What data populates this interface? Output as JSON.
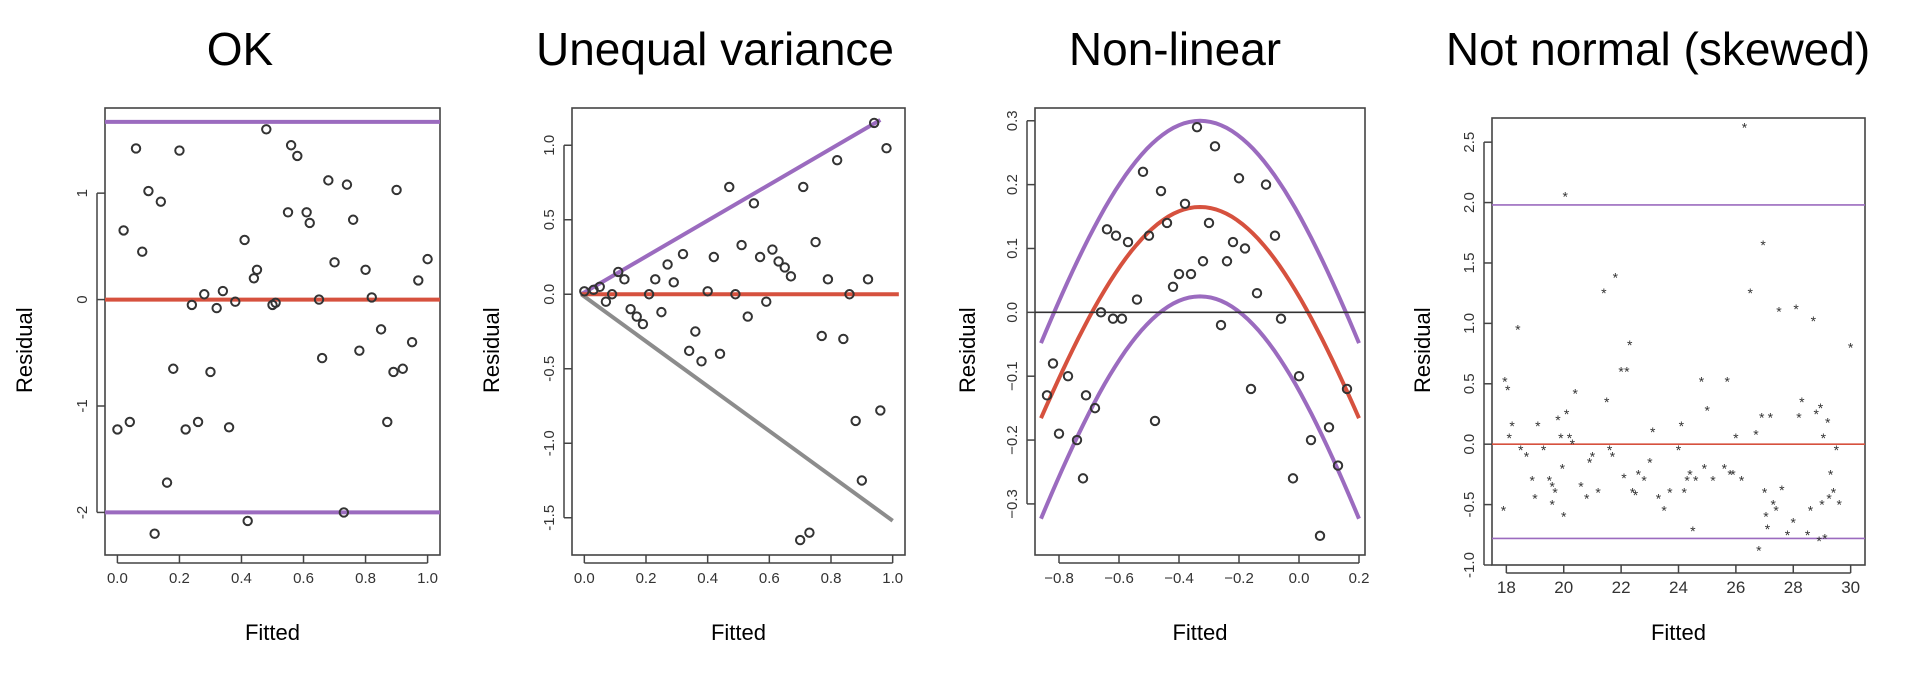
{
  "chart_data": [
    {
      "type": "scatter",
      "title": "OK",
      "xlabel": "Fitted",
      "ylabel": "Residual",
      "xlim": [
        -0.04,
        1.04
      ],
      "ylim": [
        -2.4,
        1.8
      ],
      "xticks": [
        0.0,
        0.2,
        0.4,
        0.6,
        0.8,
        1.0
      ],
      "xtick_labels": [
        "0.0",
        "0.2",
        "0.4",
        "0.6",
        "0.8",
        "1.0"
      ],
      "yticks": [
        -2,
        -1,
        0,
        1
      ],
      "ytick_labels": [
        "-2",
        "-1",
        "0",
        "1"
      ],
      "ytick_rotated": true,
      "marker": "circle",
      "grid": false,
      "points": [
        [
          0.0,
          -1.22
        ],
        [
          0.02,
          0.65
        ],
        [
          0.04,
          -1.15
        ],
        [
          0.06,
          1.42
        ],
        [
          0.08,
          0.45
        ],
        [
          0.1,
          1.02
        ],
        [
          0.12,
          -2.2
        ],
        [
          0.14,
          0.92
        ],
        [
          0.16,
          -1.72
        ],
        [
          0.18,
          -0.65
        ],
        [
          0.2,
          1.4
        ],
        [
          0.22,
          -1.22
        ],
        [
          0.24,
          -0.05
        ],
        [
          0.26,
          -1.15
        ],
        [
          0.28,
          0.05
        ],
        [
          0.3,
          -0.68
        ],
        [
          0.32,
          -0.08
        ],
        [
          0.34,
          0.08
        ],
        [
          0.36,
          -1.2
        ],
        [
          0.38,
          -0.02
        ],
        [
          0.41,
          0.56
        ],
        [
          0.42,
          -2.08
        ],
        [
          0.44,
          0.2
        ],
        [
          0.45,
          0.28
        ],
        [
          0.48,
          1.6
        ],
        [
          0.5,
          -0.05
        ],
        [
          0.51,
          -0.03
        ],
        [
          0.55,
          0.82
        ],
        [
          0.56,
          1.45
        ],
        [
          0.58,
          1.35
        ],
        [
          0.61,
          0.82
        ],
        [
          0.62,
          0.72
        ],
        [
          0.65,
          0.0
        ],
        [
          0.66,
          -0.55
        ],
        [
          0.68,
          1.12
        ],
        [
          0.7,
          0.35
        ],
        [
          0.73,
          -2.0
        ],
        [
          0.74,
          1.08
        ],
        [
          0.76,
          0.75
        ],
        [
          0.78,
          -0.48
        ],
        [
          0.8,
          0.28
        ],
        [
          0.82,
          0.02
        ],
        [
          0.85,
          -0.28
        ],
        [
          0.87,
          -1.15
        ],
        [
          0.89,
          -0.68
        ],
        [
          0.9,
          1.03
        ],
        [
          0.92,
          -0.65
        ],
        [
          0.95,
          -0.4
        ],
        [
          0.97,
          0.18
        ],
        [
          1.0,
          0.38
        ]
      ],
      "lines": [
        {
          "points": [
            [
              -0.04,
              1.67
            ],
            [
              1.04,
              1.67
            ]
          ],
          "color": "#9b6bbf"
        },
        {
          "points": [
            [
              -0.04,
              0.0
            ],
            [
              1.04,
              0.0
            ]
          ],
          "color": "#d6513e"
        },
        {
          "points": [
            [
              -0.04,
              -2.0
            ],
            [
              1.04,
              -2.0
            ]
          ],
          "color": "#9b6bbf"
        }
      ]
    },
    {
      "type": "scatter",
      "title": "Unequal variance",
      "xlabel": "Fitted",
      "ylabel": "Residual",
      "xlim": [
        -0.04,
        1.04
      ],
      "ylim": [
        -1.75,
        1.25
      ],
      "xticks": [
        0.0,
        0.2,
        0.4,
        0.6,
        0.8,
        1.0
      ],
      "xtick_labels": [
        "0.0",
        "0.2",
        "0.4",
        "0.6",
        "0.8",
        "1.0"
      ],
      "yticks": [
        -1.5,
        -1.0,
        -0.5,
        0.0,
        0.5,
        1.0
      ],
      "ytick_labels": [
        "-1.5",
        "-1.0",
        "-0.5",
        "0.0",
        "0.5",
        "1.0"
      ],
      "ytick_rotated": true,
      "marker": "circle",
      "grid": false,
      "points": [
        [
          0.0,
          0.02
        ],
        [
          0.03,
          0.03
        ],
        [
          0.05,
          0.05
        ],
        [
          0.07,
          -0.05
        ],
        [
          0.09,
          0.0
        ],
        [
          0.11,
          0.15
        ],
        [
          0.13,
          0.1
        ],
        [
          0.15,
          -0.1
        ],
        [
          0.17,
          -0.15
        ],
        [
          0.19,
          -0.2
        ],
        [
          0.21,
          0.0
        ],
        [
          0.23,
          0.1
        ],
        [
          0.25,
          -0.12
        ],
        [
          0.27,
          0.2
        ],
        [
          0.29,
          0.08
        ],
        [
          0.32,
          0.27
        ],
        [
          0.34,
          -0.38
        ],
        [
          0.36,
          -0.25
        ],
        [
          0.38,
          -0.45
        ],
        [
          0.4,
          0.02
        ],
        [
          0.42,
          0.25
        ],
        [
          0.44,
          -0.4
        ],
        [
          0.47,
          0.72
        ],
        [
          0.49,
          0.0
        ],
        [
          0.51,
          0.33
        ],
        [
          0.53,
          -0.15
        ],
        [
          0.55,
          0.61
        ],
        [
          0.57,
          0.25
        ],
        [
          0.59,
          -0.05
        ],
        [
          0.61,
          0.3
        ],
        [
          0.63,
          0.22
        ],
        [
          0.65,
          0.18
        ],
        [
          0.67,
          0.12
        ],
        [
          0.7,
          -1.65
        ],
        [
          0.71,
          0.72
        ],
        [
          0.73,
          -1.6
        ],
        [
          0.75,
          0.35
        ],
        [
          0.77,
          -0.28
        ],
        [
          0.79,
          0.1
        ],
        [
          0.82,
          0.9
        ],
        [
          0.84,
          -0.3
        ],
        [
          0.86,
          0.0
        ],
        [
          0.88,
          -0.85
        ],
        [
          0.9,
          -1.25
        ],
        [
          0.92,
          0.1
        ],
        [
          0.94,
          1.15
        ],
        [
          0.96,
          -0.78
        ],
        [
          0.98,
          0.98
        ]
      ],
      "lines": [
        {
          "points": [
            [
              -0.01,
              0.0
            ],
            [
              0.96,
              1.17
            ]
          ],
          "color": "#9b6bbf"
        },
        {
          "points": [
            [
              -0.01,
              0.0
            ],
            [
              1.0,
              -1.52
            ]
          ],
          "color": "#8c8c8c"
        },
        {
          "points": [
            [
              -0.01,
              0.0
            ],
            [
              1.02,
              0.0
            ]
          ],
          "color": "#d6513e"
        }
      ]
    },
    {
      "type": "scatter",
      "title": "Non-linear",
      "xlabel": "Fitted",
      "ylabel": "Residual",
      "xlim": [
        -0.88,
        0.22
      ],
      "ylim": [
        -0.38,
        0.32
      ],
      "xticks": [
        -0.8,
        -0.6,
        -0.4,
        -0.2,
        0.0,
        0.2
      ],
      "xtick_labels": [
        "−0.8",
        "−0.6",
        "−0.4",
        "−0.2",
        "0.0",
        "0.2"
      ],
      "yticks": [
        -0.3,
        -0.2,
        -0.1,
        0.0,
        0.1,
        0.2,
        0.3
      ],
      "ytick_labels": [
        "−0.3",
        "−0.2",
        "−0.1",
        "0.0",
        "0.1",
        "0.2",
        "0.3"
      ],
      "ytick_rotated": true,
      "marker": "circle",
      "grid": false,
      "points": [
        [
          -0.84,
          -0.13
        ],
        [
          -0.82,
          -0.08
        ],
        [
          -0.8,
          -0.19
        ],
        [
          -0.77,
          -0.1
        ],
        [
          -0.74,
          -0.2
        ],
        [
          -0.72,
          -0.26
        ],
        [
          -0.71,
          -0.13
        ],
        [
          -0.68,
          -0.15
        ],
        [
          -0.66,
          0.0
        ],
        [
          -0.64,
          0.13
        ],
        [
          -0.62,
          -0.01
        ],
        [
          -0.61,
          0.12
        ],
        [
          -0.59,
          -0.01
        ],
        [
          -0.57,
          0.11
        ],
        [
          -0.54,
          0.02
        ],
        [
          -0.52,
          0.22
        ],
        [
          -0.5,
          0.12
        ],
        [
          -0.48,
          -0.17
        ],
        [
          -0.46,
          0.19
        ],
        [
          -0.44,
          0.14
        ],
        [
          -0.42,
          0.04
        ],
        [
          -0.4,
          0.06
        ],
        [
          -0.38,
          0.17
        ],
        [
          -0.36,
          0.06
        ],
        [
          -0.34,
          0.29
        ],
        [
          -0.32,
          0.08
        ],
        [
          -0.3,
          0.14
        ],
        [
          -0.28,
          0.26
        ],
        [
          -0.26,
          -0.02
        ],
        [
          -0.24,
          0.08
        ],
        [
          -0.22,
          0.11
        ],
        [
          -0.2,
          0.21
        ],
        [
          -0.18,
          0.1
        ],
        [
          -0.16,
          -0.12
        ],
        [
          -0.14,
          0.03
        ],
        [
          -0.11,
          0.2
        ],
        [
          -0.08,
          0.12
        ],
        [
          -0.06,
          -0.01
        ],
        [
          -0.02,
          -0.26
        ],
        [
          0.0,
          -0.1
        ],
        [
          0.04,
          -0.2
        ],
        [
          0.07,
          -0.35
        ],
        [
          0.1,
          -0.18
        ],
        [
          0.13,
          -0.24
        ],
        [
          0.16,
          -0.12
        ]
      ],
      "lines": [
        {
          "type": "curve",
          "peak_x": -0.33,
          "peak_y": 0.3,
          "end_y": -0.1,
          "color": "#9b6bbf"
        },
        {
          "type": "curve",
          "peak_x": -0.33,
          "peak_y": 0.165,
          "end_y": -0.215,
          "color": "#d6513e"
        },
        {
          "type": "curve",
          "peak_x": -0.33,
          "peak_y": 0.025,
          "end_y": -0.375,
          "color": "#9b6bbf"
        },
        {
          "points": [
            [
              -0.88,
              0.0
            ],
            [
              0.22,
              0.0
            ]
          ],
          "color": "#333333",
          "thin": true
        }
      ]
    },
    {
      "type": "scatter",
      "title": "Not normal (skewed)",
      "xlabel": "Fitted",
      "ylabel": "Residual",
      "xlim": [
        17.5,
        30.5
      ],
      "ylim": [
        -1.0,
        2.7
      ],
      "xticks": [
        18,
        20,
        22,
        24,
        26,
        28,
        30
      ],
      "xtick_labels": [
        "18",
        "20",
        "22",
        "24",
        "26",
        "28",
        "30"
      ],
      "yticks": [
        -1.0,
        -0.5,
        0.0,
        0.5,
        1.0,
        1.5,
        2.0,
        2.5
      ],
      "ytick_labels": [
        "-1.0",
        "-0.5",
        "0.0",
        "0.5",
        "1.0",
        "1.5",
        "2.0",
        "2.5"
      ],
      "ytick_rotated": true,
      "marker": "star",
      "grid": false,
      "points": [
        [
          17.9,
          -0.55
        ],
        [
          17.95,
          0.52
        ],
        [
          18.05,
          0.45
        ],
        [
          18.1,
          0.05
        ],
        [
          18.2,
          0.15
        ],
        [
          18.4,
          0.95
        ],
        [
          18.5,
          -0.05
        ],
        [
          18.7,
          -0.1
        ],
        [
          18.9,
          -0.3
        ],
        [
          19.0,
          -0.45
        ],
        [
          19.1,
          0.15
        ],
        [
          19.3,
          -0.05
        ],
        [
          19.5,
          -0.3
        ],
        [
          19.6,
          -0.35
        ],
        [
          19.6,
          -0.5
        ],
        [
          19.7,
          -0.4
        ],
        [
          19.8,
          0.2
        ],
        [
          19.9,
          0.05
        ],
        [
          20.0,
          -0.6
        ],
        [
          20.05,
          2.05
        ],
        [
          20.1,
          0.25
        ],
        [
          20.2,
          0.05
        ],
        [
          20.3,
          0.0
        ],
        [
          20.4,
          0.42
        ],
        [
          20.6,
          -0.35
        ],
        [
          20.8,
          -0.45
        ],
        [
          20.9,
          -0.15
        ],
        [
          21.0,
          -0.1
        ],
        [
          21.2,
          -0.4
        ],
        [
          21.4,
          1.25
        ],
        [
          21.5,
          0.35
        ],
        [
          21.6,
          -0.05
        ],
        [
          21.7,
          -0.1
        ],
        [
          21.8,
          1.38
        ],
        [
          22.0,
          0.6
        ],
        [
          22.1,
          -0.28
        ],
        [
          22.2,
          0.6
        ],
        [
          22.3,
          0.82
        ],
        [
          22.4,
          -0.4
        ],
        [
          22.5,
          -0.42
        ],
        [
          22.6,
          -0.25
        ],
        [
          22.8,
          -0.3
        ],
        [
          23.0,
          -0.15
        ],
        [
          23.1,
          0.1
        ],
        [
          23.3,
          -0.45
        ],
        [
          23.5,
          -0.55
        ],
        [
          23.7,
          -0.4
        ],
        [
          24.0,
          -0.05
        ],
        [
          24.1,
          0.15
        ],
        [
          24.2,
          -0.4
        ],
        [
          24.3,
          -0.3
        ],
        [
          24.4,
          -0.25
        ],
        [
          24.5,
          -0.72
        ],
        [
          24.6,
          -0.3
        ],
        [
          24.8,
          0.52
        ],
        [
          24.9,
          -0.2
        ],
        [
          25.0,
          0.28
        ],
        [
          25.2,
          -0.3
        ],
        [
          25.6,
          -0.2
        ],
        [
          25.7,
          0.52
        ],
        [
          25.8,
          -0.25
        ],
        [
          25.9,
          -0.25
        ],
        [
          26.0,
          0.05
        ],
        [
          26.2,
          -0.3
        ],
        [
          26.3,
          2.62
        ],
        [
          26.5,
          1.25
        ],
        [
          26.7,
          0.08
        ],
        [
          26.8,
          -0.88
        ],
        [
          26.9,
          0.22
        ],
        [
          26.95,
          1.65
        ],
        [
          27.0,
          -0.4
        ],
        [
          27.05,
          -0.6
        ],
        [
          27.1,
          -0.7
        ],
        [
          27.2,
          0.22
        ],
        [
          27.3,
          -0.5
        ],
        [
          27.4,
          -0.55
        ],
        [
          27.5,
          1.1
        ],
        [
          27.6,
          -0.38
        ],
        [
          27.8,
          -0.75
        ],
        [
          28.0,
          -0.65
        ],
        [
          28.1,
          1.12
        ],
        [
          28.2,
          0.22
        ],
        [
          28.3,
          0.35
        ],
        [
          28.5,
          -0.75
        ],
        [
          28.6,
          -0.55
        ],
        [
          28.7,
          1.02
        ],
        [
          28.8,
          0.25
        ],
        [
          28.9,
          -0.8
        ],
        [
          29.0,
          -0.5
        ],
        [
          29.05,
          0.05
        ],
        [
          29.1,
          -0.78
        ],
        [
          29.2,
          0.18
        ],
        [
          29.3,
          -0.25
        ],
        [
          29.4,
          -0.4
        ],
        [
          29.5,
          -0.05
        ],
        [
          29.6,
          -0.5
        ],
        [
          30.0,
          0.8
        ],
        [
          28.95,
          0.3
        ],
        [
          29.25,
          -0.45
        ],
        [
          19.95,
          -0.2
        ]
      ],
      "lines": [
        {
          "points": [
            [
              17.5,
              1.98
            ],
            [
              30.5,
              1.98
            ]
          ],
          "color": "#9b6bbf",
          "thin": true
        },
        {
          "points": [
            [
              17.5,
              0.0
            ],
            [
              30.5,
              0.0
            ]
          ],
          "color": "#d6513e",
          "thin": true
        },
        {
          "points": [
            [
              17.5,
              -0.78
            ],
            [
              30.5,
              -0.78
            ]
          ],
          "color": "#9b6bbf",
          "thin": true
        }
      ]
    }
  ]
}
